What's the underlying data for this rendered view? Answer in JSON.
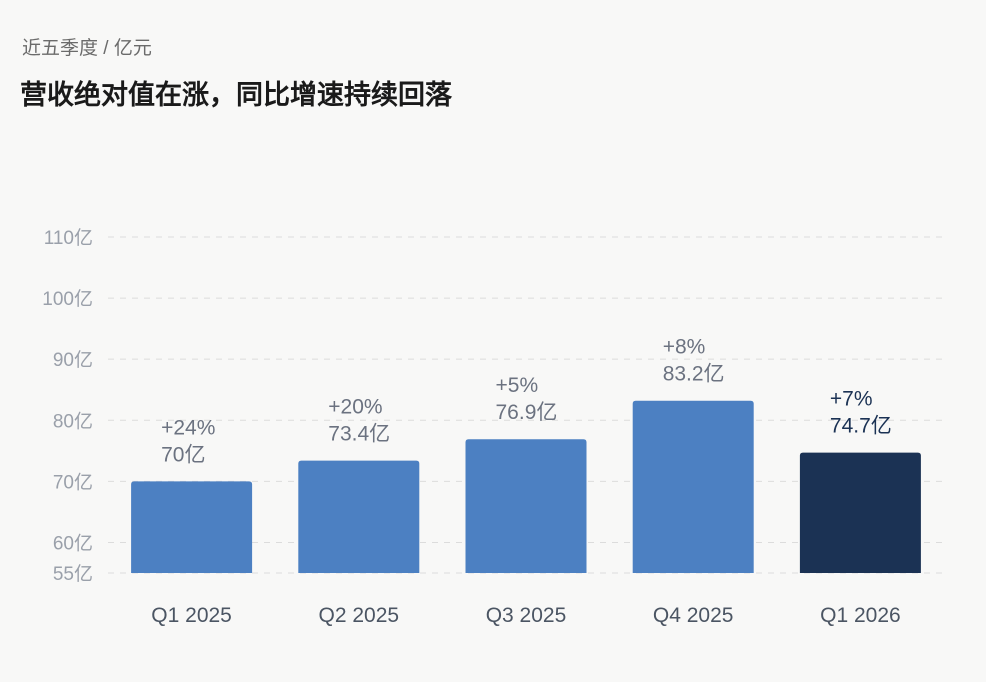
{
  "header": {
    "subtitle": "近五季度 / 亿元",
    "title": "营收绝对值在涨，同比增速持续回落"
  },
  "colors": {
    "bar": "#4c80c2",
    "bar_highlight": "#1b3254",
    "grid": "#dcdcdc",
    "background": "#f8f8f7"
  },
  "chart_data": {
    "type": "bar",
    "categories": [
      "Q1 2025",
      "Q2 2025",
      "Q3 2025",
      "Q4 2025",
      "Q1 2026"
    ],
    "values": [
      70,
      73.4,
      76.9,
      83.2,
      74.7
    ],
    "growth_labels": [
      "+24%",
      "+20%",
      "+5%",
      "+8%",
      "+7%"
    ],
    "value_labels": [
      "70亿",
      "73.4亿",
      "76.9亿",
      "83.2亿",
      "74.7亿"
    ],
    "highlight_index": 4,
    "ylim": [
      55,
      110
    ],
    "yticks": [
      55,
      60,
      70,
      80,
      90,
      100,
      110
    ],
    "ytick_labels": [
      "55亿",
      "60亿",
      "70亿",
      "80亿",
      "90亿",
      "100亿",
      "110亿"
    ],
    "grid": true,
    "xlabel": "",
    "ylabel": ""
  }
}
